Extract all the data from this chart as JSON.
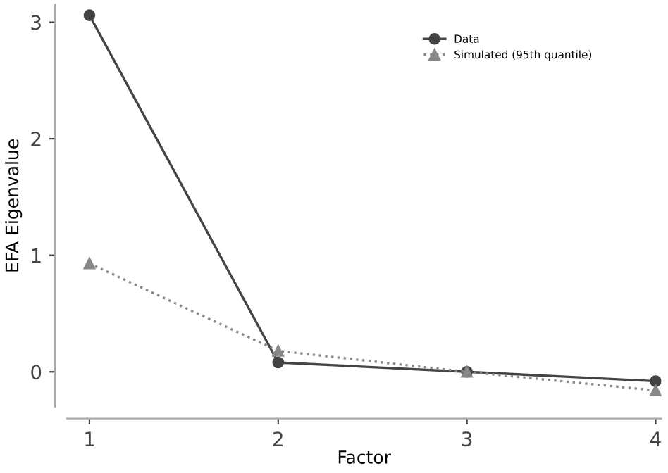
{
  "chart_data": {
    "type": "line",
    "xlabel": "Factor",
    "ylabel": "EFA Eigenvalue",
    "x": [
      1,
      2,
      3,
      4
    ],
    "xlim": [
      0.88,
      4.03
    ],
    "xticks": [
      1,
      2,
      3,
      4
    ],
    "ylim": [
      -0.3,
      3.15
    ],
    "yticks": [
      0,
      1,
      2,
      3
    ],
    "grid": false,
    "legend": "top right",
    "series": [
      {
        "name": "Data",
        "color": "#444444",
        "values": [
          3.06,
          0.08,
          0.0,
          -0.08
        ],
        "marker": "circle",
        "line_style": "solid"
      },
      {
        "name": "Simulated (95th quantile)",
        "color": "#888888",
        "values": [
          0.93,
          0.18,
          0.0,
          -0.16
        ],
        "marker": "triangle",
        "line_style": "dotted"
      }
    ]
  }
}
